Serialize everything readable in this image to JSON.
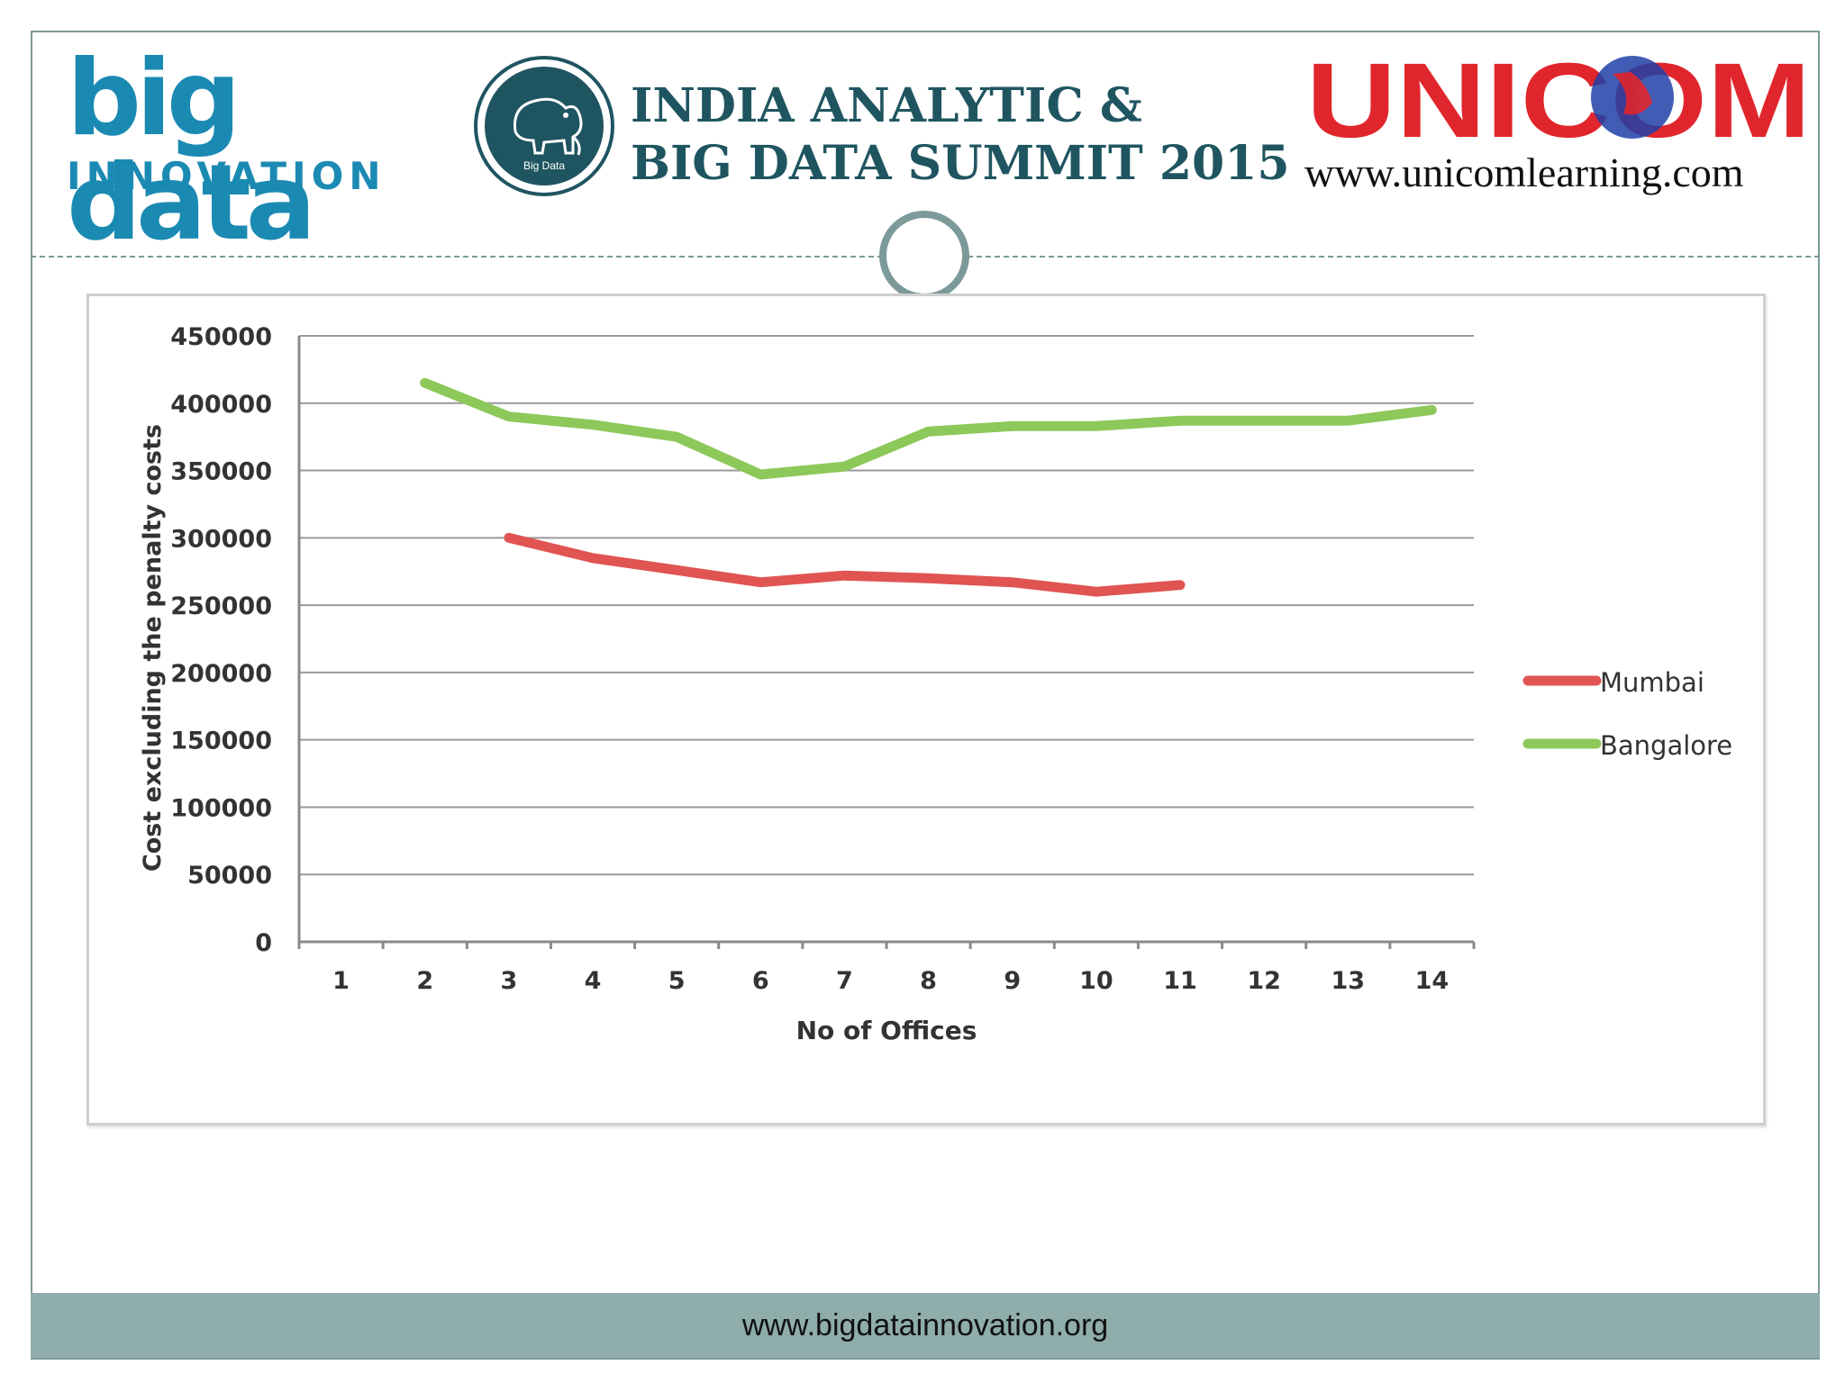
{
  "header": {
    "bdi_logo_main": "big data",
    "bdi_logo_sub": "INNOVATION",
    "summit_line1": "INDIA ANALYTIC &",
    "summit_line2": "BIG DATA SUMMIT 2015",
    "summit_seal_text": "Big Data",
    "unicom_logo_text": "UNICOM",
    "unicom_url": "www.unicomlearning.com"
  },
  "footer": {
    "url": "www.bigdatainnovation.org"
  },
  "colors": {
    "brand_blue": "#1b8ab3",
    "teal": "#1f5560",
    "frame_teal": "#7d9a9a",
    "footer_bg": "#8eadab",
    "unicom_red": "#e0262c",
    "unicom_blue": "#1f3fa8"
  },
  "chart_data": {
    "type": "line",
    "title": "",
    "xlabel": "No of Offices",
    "ylabel": "Cost excluding the penalty costs",
    "categories": [
      "1",
      "2",
      "3",
      "4",
      "5",
      "6",
      "7",
      "8",
      "9",
      "10",
      "11",
      "12",
      "13",
      "14"
    ],
    "ylim": [
      0,
      450000
    ],
    "yticks": [
      "0",
      "50000",
      "100000",
      "150000",
      "200000",
      "250000",
      "300000",
      "350000",
      "400000",
      "450000"
    ],
    "grid": true,
    "legend_position": "right",
    "series": [
      {
        "name": "Mumbai",
        "color": "#e05452",
        "values": [
          null,
          null,
          300000,
          285000,
          276000,
          267000,
          272000,
          270000,
          267000,
          260000,
          265000,
          null,
          null,
          null
        ]
      },
      {
        "name": "Bangalore",
        "color": "#8dc85a",
        "values": [
          null,
          415000,
          390000,
          384000,
          375000,
          347000,
          353000,
          379000,
          383000,
          383000,
          387000,
          387000,
          387000,
          395000
        ]
      }
    ]
  }
}
